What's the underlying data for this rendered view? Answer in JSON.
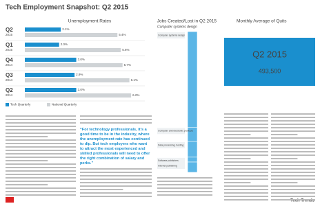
{
  "header": {
    "title": "Tech Employment Snapshot: Q2 2015"
  },
  "chart_data": [
    {
      "type": "hbar",
      "title": "Unemployment Rates",
      "categories": [
        "Q2",
        "Q1",
        "Q4",
        "Q3",
        "Q2"
      ],
      "years": [
        "2015",
        "2015",
        "2014",
        "2014",
        "2014"
      ],
      "series": [
        {
          "name": "Tech Quarterly",
          "color": "#1a8fce",
          "values": [
            2.1,
            2.0,
            3.0,
            2.9,
            3.0
          ],
          "value_labels": [
            "2.1%",
            "2.0%",
            "3.0%",
            "2.9%",
            "3.0%"
          ]
        },
        {
          "name": "National Quarterly",
          "color": "#cfd3d6",
          "values": [
            5.4,
            5.6,
            5.7,
            6.1,
            6.2
          ],
          "value_labels": [
            "5.4%",
            "5.6%",
            "5.7%",
            "6.1%",
            "6.2%"
          ]
        }
      ],
      "xlim": [
        0,
        7
      ]
    },
    {
      "type": "stack",
      "title": "Jobs Created/Lost in Q2 2015",
      "subtitle": "Computer systems design",
      "categories": [
        "Computer systems design",
        "Computer and electronic products",
        "Data processing, hosting",
        "Software publishers",
        "Internet publishing"
      ],
      "values": [
        19500,
        2900,
        3200,
        1000,
        2100
      ],
      "color": "#5bb6e6"
    },
    {
      "type": "stat",
      "title": "Monthly Average of Quits",
      "period": "Q2 2015",
      "values": [
        493500
      ],
      "value_labels": [
        "493,500"
      ],
      "color": "#1a8fce"
    }
  ],
  "quote": "“For technology professionals, it's a good time to be in the industry, where the unemployment rate has continued to dip. But tech employers who want to attract the most experienced and skilled professionals will need to offer the right combination of salary and perks.”",
  "footer": "Tech Trends"
}
